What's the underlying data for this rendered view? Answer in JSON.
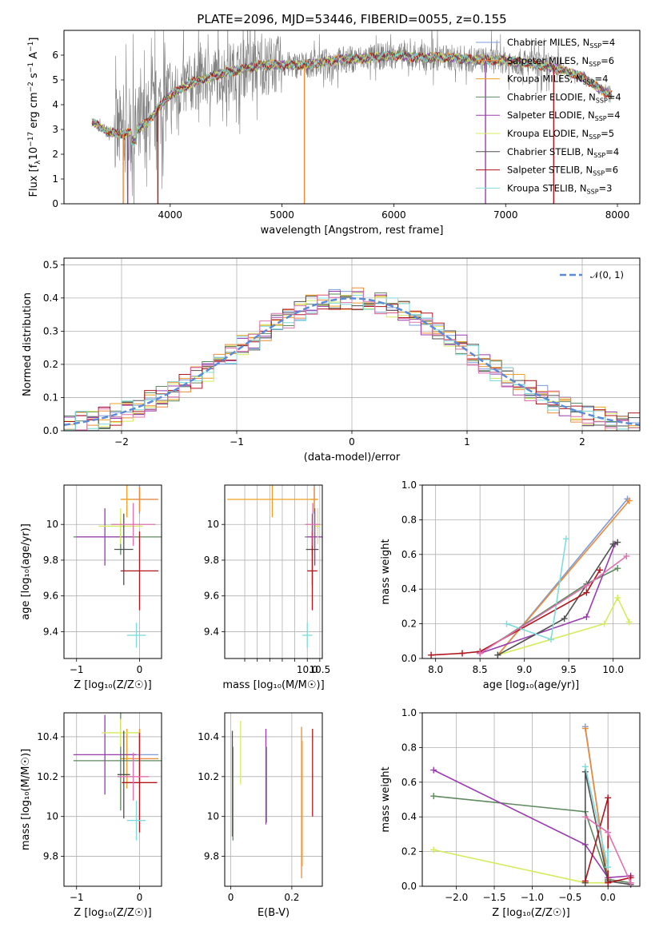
{
  "figure": {
    "title": "PLATE=2096, MJD=53446, FIBERID=0055, z=0.155"
  },
  "colors": {
    "series": [
      "#7b9bd9",
      "#ee8a36",
      "#f0a020",
      "#5f8a5f",
      "#9a3cb0",
      "#d4ec5c",
      "#505050",
      "#b0141c",
      "#7fdcdc"
    ],
    "pink": "#e070b0",
    "grid": "#b0b0b0",
    "gauss": "#5b8bd8",
    "spec_data": "#808080"
  },
  "legend_fits": [
    {
      "pre": "Chabrier MILES, N",
      "sub": "SSP",
      "post": "=4"
    },
    {
      "pre": "Salpeter MILES, N",
      "sub": "SSP",
      "post": "=6"
    },
    {
      "pre": "Kroupa MILES, N",
      "sub": "SSP",
      "post": "=4"
    },
    {
      "pre": "Chabrier ELODIE, N",
      "sub": "SSP",
      "post": "=4"
    },
    {
      "pre": "Salpeter ELODIE, N",
      "sub": "SSP",
      "post": "=4"
    },
    {
      "pre": "Kroupa ELODIE, N",
      "sub": "SSP",
      "post": "=5"
    },
    {
      "pre": "Chabrier STELIB, N",
      "sub": "SSP",
      "post": "=4"
    },
    {
      "pre": "Salpeter STELIB, N",
      "sub": "SSP",
      "post": "=6"
    },
    {
      "pre": "Kroupa STELIB, N",
      "sub": "SSP",
      "post": "=3"
    }
  ],
  "chart_data": [
    {
      "type": "line",
      "panel": "spectrum",
      "title": "PLATE=2096, MJD=53446, FIBERID=0055, z=0.155",
      "xlabel": "wavelength [Angstrom, rest frame]",
      "ylabel": {
        "pre": "Flux [f",
        "sub1": "λ",
        "mid": "10",
        "sup1": "−17",
        "post": " erg cm",
        "sup2": "−2",
        "s": " s",
        "sup3": "−1",
        "A": " A",
        "sup4": "−1",
        "end": "]"
      },
      "xlim": [
        3050,
        8200
      ],
      "ylim": [
        0,
        7
      ],
      "xticks": [
        4000,
        5000,
        6000,
        7000,
        8000
      ],
      "yticks": [
        0,
        1,
        2,
        3,
        4,
        5,
        6
      ],
      "continuum": [
        [
          3300,
          3.3
        ],
        [
          3450,
          2.9
        ],
        [
          3600,
          2.8
        ],
        [
          3700,
          3.0
        ],
        [
          3800,
          3.3
        ],
        [
          3900,
          3.9
        ],
        [
          4000,
          4.4
        ],
        [
          4200,
          4.9
        ],
        [
          4500,
          5.3
        ],
        [
          4800,
          5.6
        ],
        [
          5000,
          5.6
        ],
        [
          5200,
          5.6
        ],
        [
          5500,
          5.8
        ],
        [
          5800,
          5.9
        ],
        [
          6000,
          6.0
        ],
        [
          6200,
          5.9
        ],
        [
          6500,
          5.9
        ],
        [
          6800,
          5.8
        ],
        [
          7000,
          5.8
        ],
        [
          7300,
          5.6
        ],
        [
          7500,
          5.4
        ],
        [
          7700,
          5.1
        ],
        [
          7850,
          4.6
        ],
        [
          7950,
          4.4
        ]
      ],
      "spikes_down": [
        3580,
        3620,
        3890,
        5200,
        6820,
        7430
      ],
      "noise_band_x": [
        3500,
        7500
      ],
      "series_legend": "legend_fits"
    },
    {
      "type": "line",
      "panel": "residual_histogram",
      "xlabel": "(data-model)/error",
      "ylabel": "Normed distribution",
      "xlim": [
        -2.5,
        2.5
      ],
      "ylim": [
        0,
        0.52
      ],
      "xticks": [
        -2,
        -1,
        0,
        1,
        2
      ],
      "yticks": [
        0.0,
        0.1,
        0.2,
        0.3,
        0.4,
        0.5
      ],
      "gauss_legend": "𝒩(0, 1)",
      "bin_width": 0.1,
      "bin_start": -2.5
    },
    {
      "type": "scatter",
      "panel": "age_vs_Z",
      "xlabel": "Z [log₁₀(Z/Z☉)]",
      "ylabel": "age  [log₁₀(age/yr)]",
      "xlim": [
        -1.2,
        0.35
      ],
      "ylim": [
        9.25,
        10.22
      ],
      "xticks": [
        -1,
        0
      ],
      "yticks": [
        9.4,
        9.6,
        9.8,
        10.0
      ],
      "points": [
        {
          "x": 0.0,
          "y": 10.14,
          "xerr": 0.28,
          "yerr": 0.08,
          "c": 0
        },
        {
          "x": 0.0,
          "y": 10.14,
          "xerr": 0.3,
          "yerr": 0.07,
          "c": 1
        },
        {
          "x": -0.2,
          "y": 10.14,
          "xerr": 0.1,
          "yerr": 0.1,
          "c": 2
        },
        {
          "x": -0.3,
          "y": 9.93,
          "xerr": 0.75,
          "yerr": 0.1,
          "c": 3
        },
        {
          "x": -0.55,
          "y": 9.93,
          "xerr": 0.45,
          "yerr": 0.16,
          "c": 4
        },
        {
          "x": -0.3,
          "y": 9.99,
          "xerr": 0.35,
          "yerr": 0.1,
          "c": 5
        },
        {
          "x": -0.25,
          "y": 9.86,
          "xerr": 0.15,
          "yerr": 0.2,
          "c": 6
        },
        {
          "x": 0.0,
          "y": 9.74,
          "xerr": 0.3,
          "yerr": 0.22,
          "c": 7
        },
        {
          "x": -0.05,
          "y": 9.38,
          "xerr": 0.15,
          "yerr": 0.07,
          "c": 8
        },
        {
          "x": -0.1,
          "y": 10.0,
          "xerr": 0.35,
          "yerr": 0.12,
          "c": 9
        }
      ]
    },
    {
      "type": "scatter",
      "panel": "age_vs_mass",
      "xlabel": "mass [log₁₀(M/M☉)]",
      "ylabel": "",
      "xlim": [
        6.7,
        10.6
      ],
      "ylim": [
        9.25,
        10.22
      ],
      "xticks": [
        7.5,
        8.0,
        8.5,
        9.0,
        9.5,
        10.0,
        10.5
      ],
      "xtick_labels": [
        "",
        "",
        "",
        "",
        "",
        "10.0",
        "10.5"
      ],
      "yticks": [
        9.4,
        9.6,
        9.8,
        10.0
      ],
      "points": [
        {
          "x": 10.28,
          "y": 10.14,
          "xerr": 0.12,
          "yerr": 0.08,
          "c": 0
        },
        {
          "x": 10.28,
          "y": 10.14,
          "xerr": 0.15,
          "yerr": 0.07,
          "c": 1
        },
        {
          "x": 8.6,
          "y": 10.14,
          "xerr": 1.8,
          "yerr": 0.1,
          "c": 2
        },
        {
          "x": 10.2,
          "y": 9.93,
          "xerr": 0.3,
          "yerr": 0.1,
          "c": 3
        },
        {
          "x": 10.3,
          "y": 9.93,
          "xerr": 0.3,
          "yerr": 0.16,
          "c": 4
        },
        {
          "x": 10.42,
          "y": 9.99,
          "xerr": 0.1,
          "yerr": 0.1,
          "c": 5
        },
        {
          "x": 10.2,
          "y": 9.86,
          "xerr": 0.25,
          "yerr": 0.2,
          "c": 6
        },
        {
          "x": 10.2,
          "y": 9.74,
          "xerr": 0.2,
          "yerr": 0.22,
          "c": 7
        },
        {
          "x": 10.0,
          "y": 9.38,
          "xerr": 0.2,
          "yerr": 0.07,
          "c": 8
        },
        {
          "x": 10.22,
          "y": 10.0,
          "xerr": 0.3,
          "yerr": 0.12,
          "c": 9
        }
      ]
    },
    {
      "type": "line",
      "panel": "mass_weight_vs_age",
      "xlabel": "age  [log₁₀(age/yr)]",
      "ylabel": "mass weight",
      "xlim": [
        7.85,
        10.3
      ],
      "ylim": [
        0,
        1.0
      ],
      "xticks": [
        8.0,
        8.5,
        9.0,
        9.5,
        10.0
      ],
      "yticks": [
        0.0,
        0.2,
        0.4,
        0.6,
        0.8,
        1.0
      ],
      "series": [
        {
          "c": 0,
          "x": [
            8.7,
            10.16
          ],
          "y": [
            0.02,
            0.92
          ]
        },
        {
          "c": 1,
          "x": [
            8.7,
            10.18
          ],
          "y": [
            0.02,
            0.91
          ]
        },
        {
          "c": 3,
          "x": [
            8.5,
            9.7,
            10.05
          ],
          "y": [
            0.03,
            0.43,
            0.52
          ]
        },
        {
          "c": 4,
          "x": [
            8.5,
            9.7,
            10.02
          ],
          "y": [
            0.03,
            0.24,
            0.66
          ]
        },
        {
          "c": 5,
          "x": [
            8.7,
            9.9,
            10.05,
            10.18
          ],
          "y": [
            0.02,
            0.2,
            0.35,
            0.21
          ]
        },
        {
          "c": 6,
          "x": [
            8.7,
            9.45,
            10.0,
            10.05
          ],
          "y": [
            0.02,
            0.23,
            0.66,
            0.67
          ]
        },
        {
          "c": 7,
          "x": [
            7.95,
            8.3,
            8.5,
            9.7,
            9.85
          ],
          "y": [
            0.02,
            0.03,
            0.04,
            0.38,
            0.51
          ]
        },
        {
          "c": 8,
          "x": [
            8.8,
            9.3,
            9.47
          ],
          "y": [
            0.2,
            0.11,
            0.69
          ]
        },
        {
          "c": 9,
          "x": [
            8.5,
            9.7,
            10.15
          ],
          "y": [
            0.03,
            0.42,
            0.59
          ]
        }
      ]
    },
    {
      "type": "scatter",
      "panel": "mass_vs_Z",
      "xlabel": "Z [log₁₀(Z/Z☉)]",
      "ylabel": "mass [log₁₀(M/M☉)]",
      "xlim": [
        -1.2,
        0.35
      ],
      "ylim": [
        9.65,
        10.52
      ],
      "xticks": [
        -1,
        0
      ],
      "yticks": [
        9.8,
        10.0,
        10.2,
        10.4
      ],
      "points": [
        {
          "x": 0.0,
          "y": 10.31,
          "xerr": 0.3,
          "yerr": 0.12,
          "c": 0
        },
        {
          "x": 0.0,
          "y": 10.29,
          "xerr": 0.3,
          "yerr": 0.15,
          "c": 1
        },
        {
          "x": -0.2,
          "y": 10.29,
          "xerr": 0.1,
          "yerr": 0.15,
          "c": 2
        },
        {
          "x": -0.3,
          "y": 10.28,
          "xerr": 0.75,
          "yerr": 0.25,
          "c": 3
        },
        {
          "x": -0.55,
          "y": 10.31,
          "xerr": 0.5,
          "yerr": 0.2,
          "c": 4
        },
        {
          "x": -0.3,
          "y": 10.42,
          "xerr": 0.3,
          "yerr": 0.07,
          "c": 5
        },
        {
          "x": -0.25,
          "y": 10.21,
          "xerr": 0.1,
          "yerr": 0.22,
          "c": 6
        },
        {
          "x": 0.0,
          "y": 10.17,
          "xerr": 0.28,
          "yerr": 0.25,
          "c": 7
        },
        {
          "x": -0.05,
          "y": 9.98,
          "xerr": 0.15,
          "yerr": 0.1,
          "c": 8
        },
        {
          "x": -0.1,
          "y": 10.2,
          "xerr": 0.25,
          "yerr": 0.12,
          "c": 9
        }
      ]
    },
    {
      "type": "scatter",
      "panel": "mass_vs_EBV",
      "xlabel": "E(B-V)",
      "ylabel": "",
      "xlim": [
        -0.02,
        0.3
      ],
      "ylim": [
        9.65,
        10.52
      ],
      "xticks": [
        0.0,
        0.2
      ],
      "yticks": [
        9.8,
        10.0,
        10.2,
        10.4
      ],
      "bars": [
        {
          "x": 0.005,
          "lo": 9.9,
          "hi": 10.43,
          "c": 6
        },
        {
          "x": 0.007,
          "lo": 9.88,
          "hi": 10.35,
          "c": 3
        },
        {
          "x": 0.032,
          "lo": 10.16,
          "hi": 10.48,
          "c": 5
        },
        {
          "x": 0.115,
          "lo": 9.96,
          "hi": 10.44,
          "c": 4
        },
        {
          "x": 0.117,
          "lo": 9.97,
          "hi": 10.35,
          "c": 3
        },
        {
          "x": 0.232,
          "lo": 9.69,
          "hi": 10.45,
          "c": 1
        },
        {
          "x": 0.234,
          "lo": 9.75,
          "hi": 10.38,
          "c": 2
        },
        {
          "x": 0.268,
          "lo": 10.0,
          "hi": 10.44,
          "c": 7
        }
      ]
    },
    {
      "type": "line",
      "panel": "mass_weight_vs_Z",
      "xlabel": "Z [log₁₀(Z/Z☉)]",
      "ylabel": "mass weight",
      "xlim": [
        -2.45,
        0.42
      ],
      "ylim": [
        0,
        1.0
      ],
      "xticks": [
        -2.0,
        -1.5,
        -1.0,
        -0.5,
        0.0
      ],
      "yticks": [
        0.0,
        0.2,
        0.4,
        0.6,
        0.8,
        1.0
      ],
      "series": [
        {
          "c": 0,
          "x": [
            -0.3,
            0.0
          ],
          "y": [
            0.92,
            0.03
          ]
        },
        {
          "c": 1,
          "x": [
            -0.3,
            0.0
          ],
          "y": [
            0.91,
            0.03
          ]
        },
        {
          "c": 3,
          "x": [
            -2.3,
            -0.3,
            0.0,
            0.3
          ],
          "y": [
            0.52,
            0.43,
            0.04,
            0.02
          ]
        },
        {
          "c": 4,
          "x": [
            -2.3,
            -0.3,
            0.0,
            0.3
          ],
          "y": [
            0.67,
            0.24,
            0.05,
            0.06
          ]
        },
        {
          "c": 5,
          "x": [
            -2.3,
            -0.3,
            0.0
          ],
          "y": [
            0.21,
            0.02,
            0.02
          ]
        },
        {
          "c": 6,
          "x": [
            -0.3,
            -0.3,
            0.0,
            0.3
          ],
          "y": [
            0.02,
            0.66,
            0.03,
            0.01
          ]
        },
        {
          "c": 7,
          "x": [
            -0.3,
            0.0,
            0.0,
            0.3
          ],
          "y": [
            0.03,
            0.51,
            0.02,
            0.05
          ]
        },
        {
          "c": 8,
          "x": [
            -0.3,
            0.0,
            0.0
          ],
          "y": [
            0.69,
            0.11,
            0.2
          ]
        },
        {
          "c": 9,
          "x": [
            -0.3,
            0.0,
            0.3
          ],
          "y": [
            0.4,
            0.31,
            0.02
          ]
        }
      ]
    }
  ]
}
